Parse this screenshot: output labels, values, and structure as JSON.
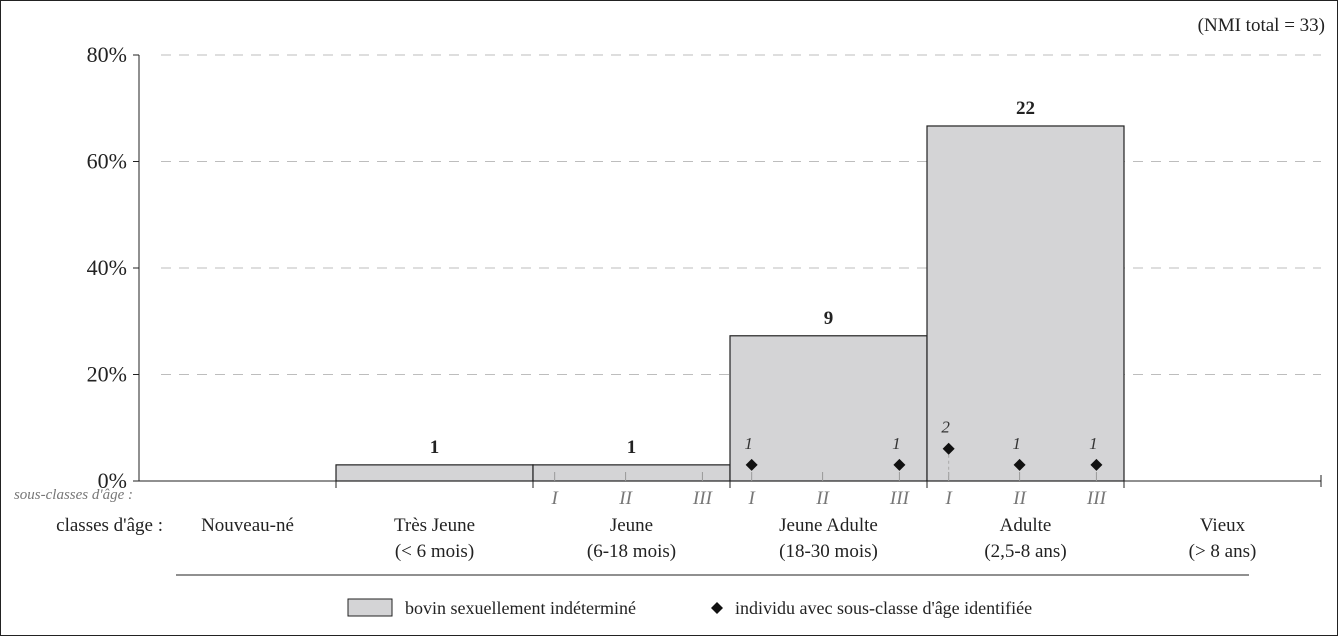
{
  "chart_data": {
    "type": "bar",
    "note": "(NMI total = 33)",
    "y_ticks": [
      "0%",
      "20%",
      "40%",
      "60%",
      "80%"
    ],
    "ylim": [
      0,
      80
    ],
    "grid": true,
    "subclass_row_label": "sous-classes d'âge :",
    "class_row_label": "classes d'âge :",
    "categories": [
      {
        "name": "Nouveau-né",
        "range": ""
      },
      {
        "name": "Très Jeune",
        "range": "(< 6 mois)"
      },
      {
        "name": "Jeune",
        "range": "(6-18 mois)"
      },
      {
        "name": "Jeune Adulte",
        "range": "(18-30 mois)"
      },
      {
        "name": "Adulte",
        "range": "(2,5-8 ans)"
      },
      {
        "name": "Vieux",
        "range": "(> 8 ans)"
      }
    ],
    "series": [
      {
        "name": "bovin sexuellement indéterminé",
        "color": "#d4d4d6",
        "percent": [
          0,
          3.03,
          3.03,
          27.27,
          66.67,
          0
        ],
        "counts": [
          "",
          "1",
          "1",
          "9",
          "22",
          ""
        ]
      }
    ],
    "subclasses": {
      "Jeune": [
        "I",
        "II",
        "III"
      ],
      "Jeune Adulte": [
        "I",
        "II",
        "III"
      ],
      "Adulte": [
        "I",
        "II",
        "III"
      ]
    },
    "individuals": [
      {
        "class": "Jeune Adulte",
        "subclass": "I",
        "count": 1,
        "label": "1"
      },
      {
        "class": "Jeune Adulte",
        "subclass": "III",
        "count": 1,
        "label": "1"
      },
      {
        "class": "Adulte",
        "subclass": "I",
        "count": 2,
        "label": "2"
      },
      {
        "class": "Adulte",
        "subclass": "II",
        "count": 1,
        "label": "1"
      },
      {
        "class": "Adulte",
        "subclass": "III",
        "count": 1,
        "label": "1"
      }
    ],
    "legend": [
      {
        "type": "box",
        "label": "bovin sexuellement indéterminé"
      },
      {
        "type": "diamond",
        "label": "individu avec sous-classe d'âge identifiée"
      }
    ]
  }
}
